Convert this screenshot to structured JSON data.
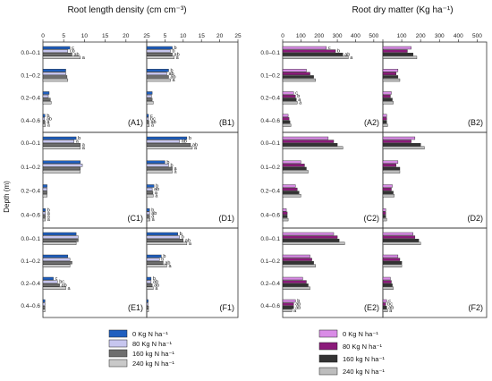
{
  "figure": {
    "left_title": "Root length density (cm cm⁻³)",
    "right_title": "Root dry matter (Kg ha⁻¹)",
    "ylabel": "Depth (m)"
  },
  "legend_left": [
    {
      "label": "0 Kg N ha⁻¹",
      "color": "#1f5fbf"
    },
    {
      "label": "80 Kg N ha⁻¹",
      "color": "#c7c6ef"
    },
    {
      "label": "160 kg N ha⁻¹",
      "color": "#6e6e6e"
    },
    {
      "label": "240 kg N ha⁻¹",
      "color": "#c9c9c9"
    }
  ],
  "legend_right": [
    {
      "label": "0 Kg N ha⁻¹",
      "color": "#d98ce6"
    },
    {
      "label": "80 Kg N ha⁻¹",
      "color": "#8b1a7a"
    },
    {
      "label": "160 kg N ha⁻¹",
      "color": "#333333"
    },
    {
      "label": "240 kg N ha⁻¹",
      "color": "#bdbdbd"
    }
  ],
  "chart_data": [
    {
      "type": "bar",
      "panel": "A1",
      "categories": [
        "0.0–0.1",
        "0.1–0.2",
        "0.2–0.4",
        "0.4–0.6"
      ],
      "xlim": [
        0,
        25
      ],
      "xticks": [
        0,
        5,
        10,
        15,
        20,
        25
      ],
      "series": [
        {
          "name": "0 Kg N ha⁻¹",
          "values": [
            6.5,
            5.5,
            1.5,
            0.5
          ]
        },
        {
          "name": "80 Kg N ha⁻¹",
          "values": [
            6.0,
            5.5,
            1.3,
            0.4
          ]
        },
        {
          "name": "160 kg N ha⁻¹",
          "values": [
            7.0,
            5.8,
            1.8,
            0.5
          ]
        },
        {
          "name": "240 kg N ha⁻¹",
          "values": [
            9.0,
            6.0,
            2.0,
            0.6
          ]
        }
      ],
      "letters": [
        [
          "c",
          "cb",
          "ab",
          "a"
        ],
        [
          "",
          "",
          "",
          ""
        ],
        [
          "",
          "",
          "",
          ""
        ],
        [
          "b",
          "ab",
          "a",
          "a"
        ]
      ]
    },
    {
      "type": "bar",
      "panel": "B1",
      "categories": [
        "0.0–0.1",
        "0.1–0.2",
        "0.2–0.4",
        "0.4–0.6"
      ],
      "xlim": [
        0,
        25
      ],
      "xticks": [
        0,
        5,
        10,
        15,
        20,
        25
      ],
      "series": [
        {
          "name": "0 Kg N ha⁻¹",
          "values": [
            7.0,
            6.0,
            1.5,
            0.5
          ]
        },
        {
          "name": "80 Kg N ha⁻¹",
          "values": [
            6.5,
            5.5,
            1.3,
            0.5
          ]
        },
        {
          "name": "160 kg N ha⁻¹",
          "values": [
            7.0,
            6.0,
            1.5,
            0.6
          ]
        },
        {
          "name": "240 kg N ha⁻¹",
          "values": [
            7.5,
            6.5,
            1.8,
            0.7
          ]
        }
      ],
      "letters": [
        [
          "b",
          "b",
          "ab",
          "a"
        ],
        [
          "b",
          "ab",
          "ab",
          "a"
        ],
        [
          "",
          "",
          "",
          ""
        ],
        [
          "c",
          "bc",
          "ab",
          "a"
        ]
      ]
    },
    {
      "type": "bar",
      "panel": "C1",
      "categories": [
        "0.0–0.1",
        "0.1–0.2",
        "0.2–0.4",
        "0.4–0.6"
      ],
      "xlim": [
        0,
        25
      ],
      "xticks": [
        0,
        5,
        10,
        15,
        20,
        25
      ],
      "series": [
        {
          "name": "0 Kg N ha⁻¹",
          "values": [
            8.0,
            9.0,
            1.0,
            0.6
          ]
        },
        {
          "name": "80 Kg N ha⁻¹",
          "values": [
            7.5,
            9.5,
            1.0,
            0.6
          ]
        },
        {
          "name": "160 kg N ha⁻¹",
          "values": [
            9.0,
            9.0,
            1.0,
            0.6
          ]
        },
        {
          "name": "240 kg N ha⁻¹",
          "values": [
            9.0,
            9.0,
            1.0,
            0.6
          ]
        }
      ],
      "letters": [
        [
          "b",
          "a",
          "a",
          "a"
        ],
        [
          "",
          "",
          "",
          ""
        ],
        [
          "",
          "",
          "",
          ""
        ],
        [
          "b",
          "a",
          "a",
          "a"
        ]
      ]
    },
    {
      "type": "bar",
      "panel": "D1",
      "categories": [
        "0.0–0.1",
        "0.1–0.2",
        "0.2–0.4",
        "0.4–0.6"
      ],
      "xlim": [
        0,
        25
      ],
      "xticks": [
        0,
        5,
        10,
        15,
        20,
        25
      ],
      "series": [
        {
          "name": "0 Kg N ha⁻¹",
          "values": [
            11.0,
            5.0,
            2.0,
            0.8
          ]
        },
        {
          "name": "80 Kg N ha⁻¹",
          "values": [
            9.0,
            6.0,
            1.5,
            0.8
          ]
        },
        {
          "name": "160 kg N ha⁻¹",
          "values": [
            12.0,
            7.0,
            1.7,
            0.8
          ]
        },
        {
          "name": "240 kg N ha⁻¹",
          "values": [
            12.5,
            7.0,
            1.8,
            0.9
          ]
        }
      ],
      "letters": [
        [
          "b",
          "ab",
          "ab",
          "a"
        ],
        [
          "b",
          "b",
          "a",
          "a"
        ],
        [
          "b",
          "ab",
          "a",
          "a"
        ],
        [
          "b",
          "ab",
          "a",
          "a"
        ]
      ]
    },
    {
      "type": "bar",
      "panel": "E1",
      "categories": [
        "0.0–0.1",
        "0.1–0.2",
        "0.2–0.4",
        "0.4–0.6"
      ],
      "xlim": [
        0,
        25
      ],
      "xticks": [
        0,
        5,
        10,
        15,
        20,
        25
      ],
      "series": [
        {
          "name": "0 Kg N ha⁻¹",
          "values": [
            8.0,
            6.0,
            2.5,
            0.5
          ]
        },
        {
          "name": "80 Kg N ha⁻¹",
          "values": [
            8.5,
            6.5,
            3.5,
            0.5
          ]
        },
        {
          "name": "160 kg N ha⁻¹",
          "values": [
            8.5,
            7.0,
            4.0,
            0.5
          ]
        },
        {
          "name": "240 kg N ha⁻¹",
          "values": [
            8.0,
            6.5,
            5.5,
            0.5
          ]
        }
      ],
      "letters": [
        [
          "",
          "",
          "",
          ""
        ],
        [
          "",
          "",
          "",
          ""
        ],
        [
          "c",
          "bc",
          "ab",
          "a"
        ],
        [
          "",
          "",
          "",
          ""
        ]
      ]
    },
    {
      "type": "bar",
      "panel": "F1",
      "categories": [
        "0.0–0.1",
        "0.1–0.2",
        "0.2–0.4",
        "0.4–0.6"
      ],
      "xlim": [
        0,
        25
      ],
      "xticks": [
        0,
        5,
        10,
        15,
        20,
        25
      ],
      "series": [
        {
          "name": "0 Kg N ha⁻¹",
          "values": [
            8.5,
            4.0,
            1.2,
            0.4
          ]
        },
        {
          "name": "80 Kg N ha⁻¹",
          "values": [
            9.0,
            3.5,
            1.2,
            0.4
          ]
        },
        {
          "name": "160 kg N ha⁻¹",
          "values": [
            10.0,
            4.5,
            1.5,
            0.5
          ]
        },
        {
          "name": "240 kg N ha⁻¹",
          "values": [
            11.0,
            5.5,
            1.8,
            0.5
          ]
        }
      ],
      "letters": [
        [
          "b",
          "b",
          "ab",
          "a"
        ],
        [
          "b",
          "b",
          "ab",
          "a"
        ],
        [
          "b",
          "ab",
          "ab",
          "a"
        ],
        [
          "",
          "",
          "",
          ""
        ]
      ]
    },
    {
      "type": "bar",
      "panel": "A2",
      "categories": [
        "0.0–0.1",
        "0.1–0.2",
        "0.2–0.4",
        "0.4–0.6"
      ],
      "xlim": [
        0,
        550
      ],
      "xticks": [
        0,
        100,
        200,
        300,
        400,
        500
      ],
      "series": [
        {
          "name": "0 Kg N ha⁻¹",
          "values": [
            240,
            130,
            60,
            30
          ]
        },
        {
          "name": "80 Kg N ha⁻¹",
          "values": [
            290,
            150,
            70,
            35
          ]
        },
        {
          "name": "160 kg N ha⁻¹",
          "values": [
            330,
            170,
            75,
            40
          ]
        },
        {
          "name": "240 kg N ha⁻¹",
          "values": [
            360,
            180,
            80,
            45
          ]
        }
      ],
      "letters": [
        [
          "c",
          "b",
          "ab",
          "a"
        ],
        [
          "",
          "",
          "",
          ""
        ],
        [
          "c",
          "b",
          "a",
          "a"
        ],
        [
          "",
          "",
          "",
          ""
        ]
      ]
    },
    {
      "type": "bar",
      "panel": "B2",
      "categories": [
        "0.0–0.1",
        "0.1–0.2",
        "0.2–0.4",
        "0.4–0.6"
      ],
      "xlim": [
        0,
        550
      ],
      "xticks": [
        0,
        100,
        200,
        300,
        400,
        500
      ],
      "series": [
        {
          "name": "0 Kg N ha⁻¹",
          "values": [
            150,
            80,
            45,
            20
          ]
        },
        {
          "name": "80 Kg N ha⁻¹",
          "values": [
            130,
            70,
            40,
            20
          ]
        },
        {
          "name": "160 kg N ha⁻¹",
          "values": [
            160,
            80,
            50,
            20
          ]
        },
        {
          "name": "240 kg N ha⁻¹",
          "values": [
            180,
            90,
            55,
            25
          ]
        }
      ],
      "letters": [
        [
          "",
          "",
          "",
          ""
        ],
        [
          "",
          "",
          "",
          ""
        ],
        [
          "",
          "",
          "",
          ""
        ],
        [
          "",
          "",
          "",
          ""
        ]
      ]
    },
    {
      "type": "bar",
      "panel": "C2",
      "categories": [
        "0.0–0.1",
        "0.1–0.2",
        "0.2–0.4",
        "0.4–0.6"
      ],
      "xlim": [
        0,
        550
      ],
      "xticks": [
        0,
        100,
        200,
        300,
        400,
        500
      ],
      "series": [
        {
          "name": "0 Kg N ha⁻¹",
          "values": [
            250,
            100,
            70,
            20
          ]
        },
        {
          "name": "80 Kg N ha⁻¹",
          "values": [
            280,
            120,
            80,
            25
          ]
        },
        {
          "name": "160 kg N ha⁻¹",
          "values": [
            300,
            130,
            90,
            25
          ]
        },
        {
          "name": "240 kg N ha⁻¹",
          "values": [
            330,
            140,
            100,
            30
          ]
        }
      ],
      "letters": [
        [
          "",
          "",
          "",
          ""
        ],
        [
          "",
          "",
          "",
          ""
        ],
        [
          "",
          "",
          "",
          ""
        ],
        [
          "",
          "",
          "",
          ""
        ]
      ]
    },
    {
      "type": "bar",
      "panel": "D2",
      "categories": [
        "0.0–0.1",
        "0.1–0.2",
        "0.2–0.4",
        "0.4–0.6"
      ],
      "xlim": [
        0,
        550
      ],
      "xticks": [
        0,
        100,
        200,
        300,
        400,
        500
      ],
      "series": [
        {
          "name": "0 Kg N ha⁻¹",
          "values": [
            170,
            80,
            50,
            15
          ]
        },
        {
          "name": "80 Kg N ha⁻¹",
          "values": [
            150,
            70,
            45,
            15
          ]
        },
        {
          "name": "160 kg N ha⁻¹",
          "values": [
            200,
            90,
            55,
            15
          ]
        },
        {
          "name": "240 kg N ha⁻¹",
          "values": [
            220,
            90,
            60,
            20
          ]
        }
      ],
      "letters": [
        [
          "",
          "",
          "",
          ""
        ],
        [
          "",
          "",
          "",
          ""
        ],
        [
          "",
          "",
          "",
          ""
        ],
        [
          "",
          "",
          "",
          ""
        ]
      ]
    },
    {
      "type": "bar",
      "panel": "E2",
      "categories": [
        "0.0–0.1",
        "0.1–0.2",
        "0.2–0.4",
        "0.4–0.6"
      ],
      "xlim": [
        0,
        550
      ],
      "xticks": [
        0,
        100,
        200,
        300,
        400,
        500
      ],
      "series": [
        {
          "name": "0 Kg N ha⁻¹",
          "values": [
            280,
            150,
            110,
            70
          ]
        },
        {
          "name": "80 Kg N ha⁻¹",
          "values": [
            300,
            160,
            130,
            60
          ]
        },
        {
          "name": "160 kg N ha⁻¹",
          "values": [
            310,
            170,
            140,
            60
          ]
        },
        {
          "name": "240 kg N ha⁻¹",
          "values": [
            340,
            180,
            150,
            50
          ]
        }
      ],
      "letters": [
        [
          "",
          "",
          "",
          ""
        ],
        [
          "",
          "",
          "",
          ""
        ],
        [
          "",
          "",
          "",
          ""
        ],
        [
          "b",
          "ab",
          "ab",
          "a"
        ]
      ]
    },
    {
      "type": "bar",
      "panel": "F2",
      "categories": [
        "0.0–0.1",
        "0.1–0.2",
        "0.2–0.4",
        "0.4–0.6"
      ],
      "xlim": [
        0,
        550
      ],
      "xticks": [
        0,
        100,
        200,
        300,
        400,
        500
      ],
      "series": [
        {
          "name": "0 Kg N ha⁻¹",
          "values": [
            160,
            80,
            40,
            20
          ]
        },
        {
          "name": "80 Kg N ha⁻¹",
          "values": [
            170,
            90,
            45,
            15
          ]
        },
        {
          "name": "160 kg N ha⁻¹",
          "values": [
            190,
            100,
            50,
            20
          ]
        },
        {
          "name": "240 kg N ha⁻¹",
          "values": [
            200,
            100,
            55,
            25
          ]
        }
      ],
      "letters": [
        [
          "",
          "",
          "",
          ""
        ],
        [
          "",
          "",
          "",
          ""
        ],
        [
          "",
          "",
          "",
          ""
        ],
        [
          "c",
          "bc",
          "ab",
          "a"
        ]
      ]
    }
  ]
}
